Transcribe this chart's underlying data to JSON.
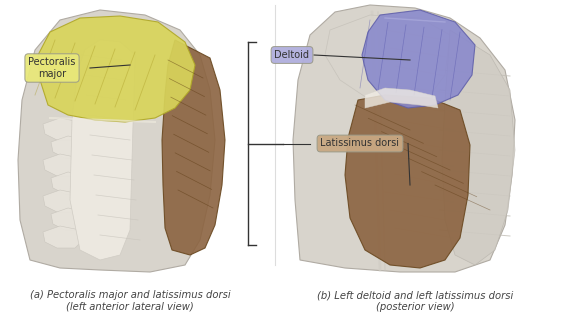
{
  "figsize": [
    5.69,
    3.21
  ],
  "dpi": 100,
  "bg_color": "#ffffff",
  "caption_a": "(a) Pectoralis major and latissimus dorsi\n(left anterior lateral view)",
  "caption_b": "(b) Left deltoid and left latissimus dorsi\n(posterior view)",
  "caption_fontsize": 7.2,
  "caption_color": "#444444",
  "label_pectoralis": "Pectoralis\nmajor",
  "label_pectoralis_bg": "#e8e87a",
  "label_deltoid": "Deltoid",
  "label_deltoid_bg": "#b0aedd",
  "label_latissimus": "Latissimus dorsi",
  "label_latissimus_bg": "#c8a882",
  "label_fontsize": 7,
  "label_color": "#333333",
  "pec_color": "#d8d45a",
  "lat_color": "#8B6340",
  "deltoid_color": "#8888cc",
  "muscle_light": "#e8e0d0",
  "muscle_mid": "#c8c0b0",
  "muscle_dark": "#a89880",
  "body_light": "#d8d4cc",
  "body_mid": "#c0bcb4",
  "body_dark": "#a8a49c",
  "white_tendon": "#f0ece4"
}
